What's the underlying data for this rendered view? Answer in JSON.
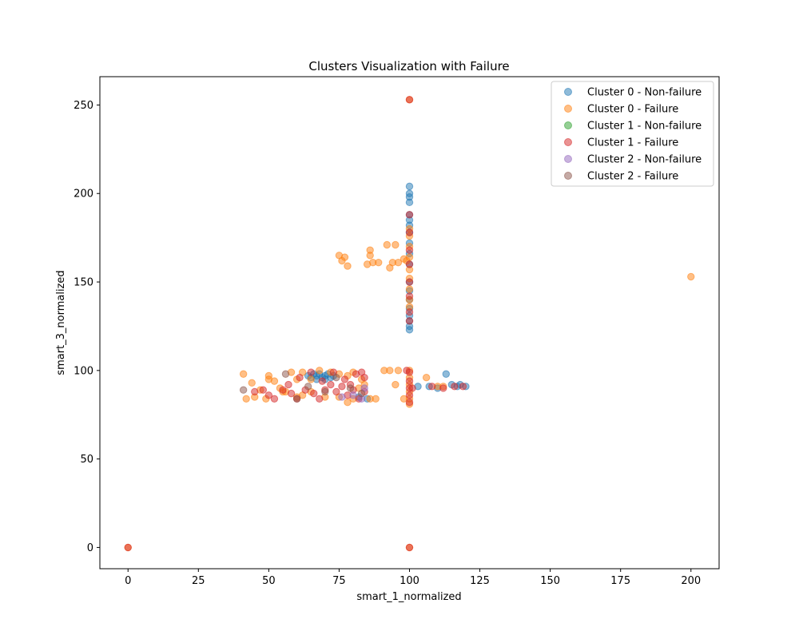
{
  "chart_data": {
    "type": "scatter",
    "title": "Clusters Visualization with Failure",
    "xlabel": "smart_1_normalized",
    "ylabel": "smart_3_normalized",
    "xlim": [
      -10,
      210
    ],
    "ylim": [
      -12,
      266
    ],
    "xticks": [
      0,
      25,
      50,
      75,
      100,
      125,
      150,
      175,
      200
    ],
    "yticks": [
      0,
      50,
      100,
      150,
      200,
      250
    ],
    "grid": false,
    "legend_position": "top-right",
    "series": [
      {
        "name": "Cluster 0 - Non-failure",
        "color": "#1f77b4",
        "points": [
          [
            100,
            204
          ],
          [
            100,
            200
          ],
          [
            100,
            198
          ],
          [
            100,
            195
          ],
          [
            100,
            188
          ],
          [
            100,
            185
          ],
          [
            100,
            182
          ],
          [
            100,
            178
          ],
          [
            100,
            172
          ],
          [
            100,
            166
          ],
          [
            100,
            160
          ],
          [
            100,
            150
          ],
          [
            100,
            145
          ],
          [
            100,
            140
          ],
          [
            100,
            135
          ],
          [
            100,
            131
          ],
          [
            100,
            128
          ],
          [
            100,
            125
          ],
          [
            100,
            123
          ],
          [
            64,
            97
          ],
          [
            65,
            96
          ],
          [
            66,
            98
          ],
          [
            67,
            97
          ],
          [
            68,
            98
          ],
          [
            69,
            96
          ],
          [
            70,
            97
          ],
          [
            71,
            98
          ],
          [
            72,
            96
          ],
          [
            73,
            97
          ],
          [
            67,
            95
          ],
          [
            70,
            95
          ],
          [
            103,
            91
          ],
          [
            107,
            91
          ],
          [
            110,
            90
          ],
          [
            113,
            98
          ],
          [
            115,
            92
          ],
          [
            117,
            91
          ],
          [
            118,
            92
          ],
          [
            120,
            91
          ],
          [
            85,
            84
          ],
          [
            82,
            85
          ]
        ]
      },
      {
        "name": "Cluster 0 - Failure",
        "color": "#ff7f0e",
        "points": [
          [
            0,
            0
          ],
          [
            100,
            0
          ],
          [
            100,
            253
          ],
          [
            200,
            153
          ],
          [
            75,
            165
          ],
          [
            76,
            162
          ],
          [
            77,
            164
          ],
          [
            78,
            159
          ],
          [
            85,
            160
          ],
          [
            86,
            168
          ],
          [
            86,
            165
          ],
          [
            87,
            161
          ],
          [
            89,
            161
          ],
          [
            92,
            171
          ],
          [
            93,
            158
          ],
          [
            94,
            161
          ],
          [
            95,
            171
          ],
          [
            96,
            161
          ],
          [
            98,
            163
          ],
          [
            99,
            162
          ],
          [
            100,
            180
          ],
          [
            100,
            176
          ],
          [
            100,
            170
          ],
          [
            100,
            164
          ],
          [
            100,
            157
          ],
          [
            100,
            152
          ],
          [
            100,
            146
          ],
          [
            100,
            140
          ],
          [
            100,
            136
          ],
          [
            41,
            98
          ],
          [
            42,
            84
          ],
          [
            44,
            93
          ],
          [
            45,
            85
          ],
          [
            47,
            89
          ],
          [
            49,
            84
          ],
          [
            50,
            97
          ],
          [
            50,
            95
          ],
          [
            52,
            94
          ],
          [
            54,
            90
          ],
          [
            56,
            88
          ],
          [
            58,
            99
          ],
          [
            60,
            95
          ],
          [
            62,
            99
          ],
          [
            65,
            95
          ],
          [
            68,
            100
          ],
          [
            72,
            99
          ],
          [
            75,
            98
          ],
          [
            78,
            97
          ],
          [
            80,
            99
          ],
          [
            83,
            95
          ],
          [
            86,
            84
          ],
          [
            88,
            84
          ],
          [
            91,
            100
          ],
          [
            93,
            100
          ],
          [
            95,
            92
          ],
          [
            96,
            100
          ],
          [
            98,
            84
          ],
          [
            106,
            96
          ],
          [
            110,
            91
          ],
          [
            112,
            91
          ],
          [
            55,
            88
          ],
          [
            60,
            85
          ],
          [
            65,
            88
          ],
          [
            70,
            85
          ],
          [
            75,
            85
          ],
          [
            80,
            84
          ],
          [
            78,
            82
          ],
          [
            82,
            90
          ],
          [
            84,
            92
          ],
          [
            62,
            86
          ],
          [
            100,
            100
          ],
          [
            100,
            96
          ],
          [
            100,
            92
          ],
          [
            100,
            88
          ],
          [
            100,
            84
          ],
          [
            100,
            81
          ]
        ]
      },
      {
        "name": "Cluster 1 - Non-failure",
        "color": "#2ca02c",
        "points": []
      },
      {
        "name": "Cluster 1 - Failure",
        "color": "#d62728",
        "points": [
          [
            0,
            0
          ],
          [
            100,
            0
          ],
          [
            100,
            253
          ],
          [
            100,
            188
          ],
          [
            100,
            178
          ],
          [
            100,
            168
          ],
          [
            100,
            160
          ],
          [
            100,
            150
          ],
          [
            100,
            142
          ],
          [
            100,
            133
          ],
          [
            100,
            128
          ],
          [
            45,
            88
          ],
          [
            48,
            89
          ],
          [
            50,
            86
          ],
          [
            52,
            84
          ],
          [
            55,
            89
          ],
          [
            58,
            87
          ],
          [
            60,
            84
          ],
          [
            63,
            89
          ],
          [
            66,
            87
          ],
          [
            68,
            84
          ],
          [
            70,
            89
          ],
          [
            72,
            92
          ],
          [
            74,
            88
          ],
          [
            76,
            91
          ],
          [
            78,
            86
          ],
          [
            80,
            89
          ],
          [
            82,
            84
          ],
          [
            84,
            88
          ],
          [
            84,
            96
          ],
          [
            83,
            99
          ],
          [
            57,
            92
          ],
          [
            61,
            96
          ],
          [
            65,
            99
          ],
          [
            69,
            94
          ],
          [
            73,
            99
          ],
          [
            77,
            95
          ],
          [
            81,
            98
          ],
          [
            79,
            92
          ],
          [
            100,
            99
          ],
          [
            100,
            94
          ],
          [
            100,
            90
          ],
          [
            100,
            86
          ],
          [
            100,
            82
          ],
          [
            99,
            100
          ],
          [
            101,
            90
          ],
          [
            108,
            91
          ],
          [
            112,
            90
          ],
          [
            116,
            91
          ],
          [
            119,
            91
          ]
        ]
      },
      {
        "name": "Cluster 2 - Non-failure",
        "color": "#9467bd",
        "points": [
          [
            76,
            85
          ],
          [
            80,
            86
          ],
          [
            83,
            84
          ],
          [
            84,
            90
          ]
        ]
      },
      {
        "name": "Cluster 2 - Failure",
        "color": "#8c564b",
        "points": [
          [
            41,
            89
          ],
          [
            56,
            98
          ],
          [
            60,
            84
          ],
          [
            64,
            91
          ],
          [
            70,
            88
          ],
          [
            74,
            96
          ],
          [
            79,
            90
          ],
          [
            83,
            87
          ]
        ]
      }
    ]
  }
}
